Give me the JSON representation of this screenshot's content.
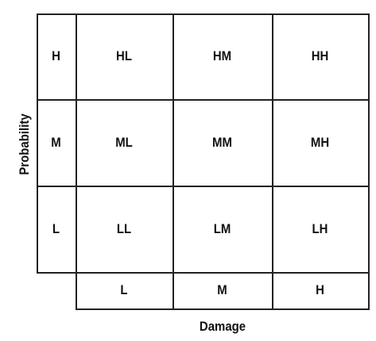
{
  "matrix": {
    "y_axis_title": "Probability",
    "x_axis_title": "Damage",
    "row_labels": [
      "H",
      "M",
      "L"
    ],
    "col_labels": [
      "L",
      "M",
      "H"
    ],
    "cells": [
      [
        "HL",
        "HM",
        "HH"
      ],
      [
        "ML",
        "MM",
        "MH"
      ],
      [
        "LL",
        "LM",
        "LH"
      ]
    ]
  }
}
